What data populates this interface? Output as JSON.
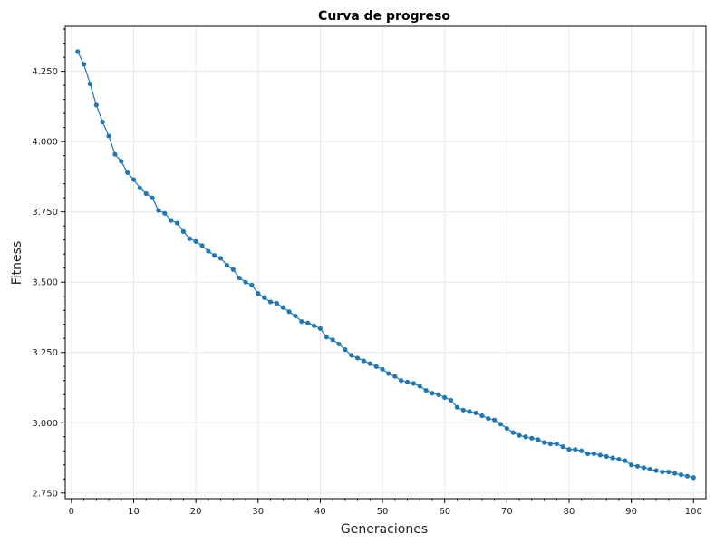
{
  "chart_data": {
    "type": "line",
    "title": "Curva de progreso",
    "xlabel": "Generaciones",
    "ylabel": "Fitness",
    "xlim": [
      -1,
      102
    ],
    "ylim": [
      2.73,
      4.41
    ],
    "x_ticks": [
      0,
      10,
      20,
      30,
      40,
      50,
      60,
      70,
      80,
      90,
      100
    ],
    "x_tick_labels": [
      "0",
      "10",
      "20",
      "30",
      "40",
      "50",
      "60",
      "70",
      "80",
      "90",
      "100"
    ],
    "y_ticks": [
      2.75,
      3.0,
      3.25,
      3.5,
      3.75,
      4.0,
      4.25
    ],
    "y_tick_labels": [
      "2.750",
      "3.000",
      "3.250",
      "3.500",
      "3.750",
      "4.000",
      "4.250"
    ],
    "grid": true,
    "colors": {
      "series": "#1f77b4",
      "grid": "#e8e8e8",
      "axis": "#000000"
    },
    "series": [
      {
        "x": [
          1,
          2,
          3,
          4,
          5,
          6,
          7,
          8,
          9,
          10,
          11,
          12,
          13,
          14,
          15,
          16,
          17,
          18,
          19,
          20,
          21,
          22,
          23,
          24,
          25,
          26,
          27,
          28,
          29,
          30,
          31,
          32,
          33,
          34,
          35,
          36,
          37,
          38,
          39,
          40,
          41,
          42,
          43,
          44,
          45,
          46,
          47,
          48,
          49,
          50,
          51,
          52,
          53,
          54,
          55,
          56,
          57,
          58,
          59,
          60,
          61,
          62,
          63,
          64,
          65,
          66,
          67,
          68,
          69,
          70,
          71,
          72,
          73,
          74,
          75,
          76,
          77,
          78,
          79,
          80,
          81,
          82,
          83,
          84,
          85,
          86,
          87,
          88,
          89,
          90,
          91,
          92,
          93,
          94,
          95,
          96,
          97,
          98,
          99,
          100
        ],
        "values": [
          4.32,
          4.275,
          4.205,
          4.13,
          4.07,
          4.02,
          3.955,
          3.93,
          3.89,
          3.865,
          3.835,
          3.815,
          3.8,
          3.755,
          3.745,
          3.72,
          3.71,
          3.68,
          3.655,
          3.645,
          3.63,
          3.61,
          3.595,
          3.585,
          3.56,
          3.545,
          3.515,
          3.5,
          3.49,
          3.46,
          3.445,
          3.43,
          3.425,
          3.41,
          3.395,
          3.38,
          3.36,
          3.355,
          3.345,
          3.335,
          3.305,
          3.295,
          3.28,
          3.26,
          3.24,
          3.23,
          3.22,
          3.21,
          3.2,
          3.19,
          3.175,
          3.165,
          3.15,
          3.145,
          3.14,
          3.13,
          3.115,
          3.105,
          3.1,
          3.09,
          3.08,
          3.055,
          3.045,
          3.04,
          3.035,
          3.025,
          3.015,
          3.01,
          2.995,
          2.98,
          2.965,
          2.955,
          2.95,
          2.945,
          2.94,
          2.93,
          2.925,
          2.925,
          2.915,
          2.905,
          2.905,
          2.9,
          2.89,
          2.89,
          2.885,
          2.88,
          2.875,
          2.87,
          2.865,
          2.85,
          2.845,
          2.84,
          2.835,
          2.83,
          2.825,
          2.825,
          2.82,
          2.815,
          2.81,
          2.805
        ]
      }
    ]
  }
}
